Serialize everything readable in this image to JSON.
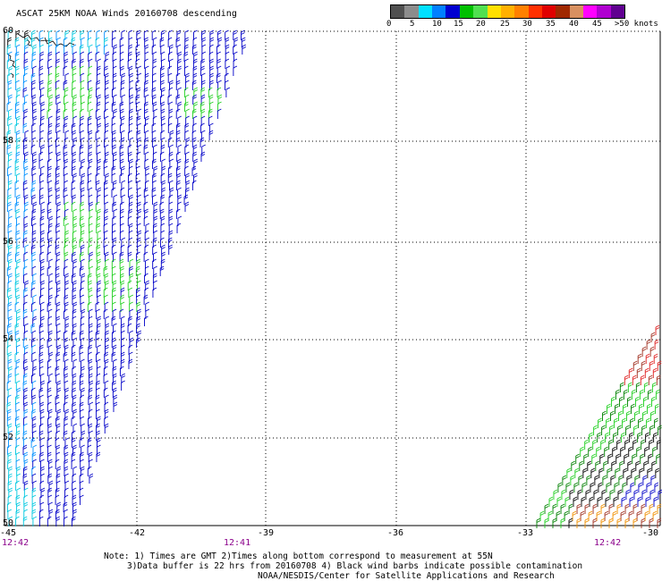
{
  "title": "ASCAT 25KM NOAA Winds 20160708 descending",
  "legend": {
    "colors": [
      "#505050",
      "#8c8c8c",
      "#00e0ff",
      "#0080ff",
      "#0000d0",
      "#00c000",
      "#50e050",
      "#ffe000",
      "#ffb000",
      "#ff8000",
      "#ff3000",
      "#e00000",
      "#a02800",
      "#d89060",
      "#ff00ff",
      "#b000d0",
      "#600090"
    ],
    "labels": [
      "0",
      "5",
      "10",
      "15",
      "20",
      "25",
      "30",
      "35",
      "40",
      "45",
      ">50 knots"
    ]
  },
  "map": {
    "latitudes": [
      "60",
      "58",
      "56",
      "54",
      "52",
      "50"
    ],
    "longitudes": [
      "-45",
      "-42",
      "-39",
      "-36",
      "-33",
      "-30"
    ],
    "times": [
      "12:42",
      "12:41",
      "12:42"
    ],
    "land_label": "land-coastline",
    "wind_colors": {
      "black": "#000000",
      "cyan": "#00c8e0",
      "lightblue": "#0090ff",
      "blue": "#0000c8",
      "green": "#20d020",
      "darkgreen": "#008000",
      "yellow": "#f0e000",
      "orange": "#f09000",
      "red": "#e02020",
      "brown": "#a03020"
    }
  },
  "notes": [
    "Note: 1) Times are GMT 2)Times along bottom correspond to measurement at 55N",
    "3)Data buffer is 22 hrs from 20160708 4) Black wind barbs indicate possible contamination",
    "NOAA/NESDIS/Center for Satellite Applications and Research"
  ]
}
